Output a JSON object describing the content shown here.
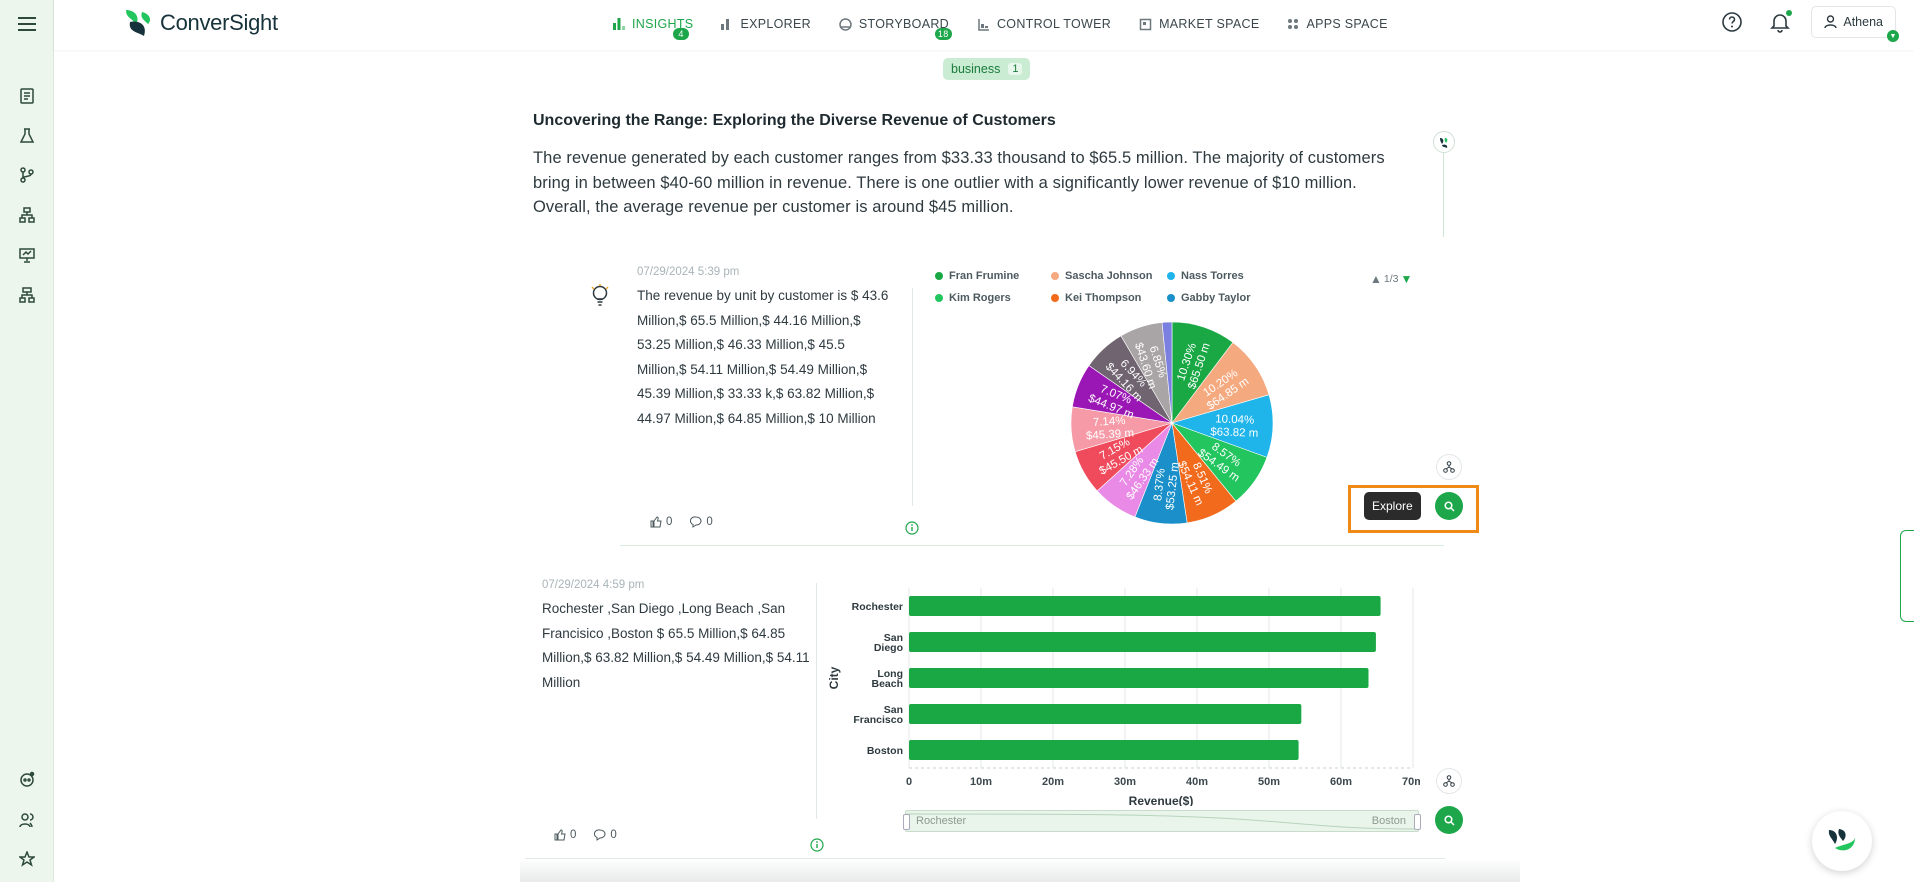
{
  "app": {
    "brand": "ConverSight"
  },
  "nav": [
    {
      "label": "INSIGHTS",
      "badge": "4",
      "active": true
    },
    {
      "label": "EXPLORER",
      "badge": ""
    },
    {
      "label": "STORYBOARD",
      "badge": "18"
    },
    {
      "label": "CONTROL TOWER",
      "badge": ""
    },
    {
      "label": "MARKET SPACE",
      "badge": ""
    },
    {
      "label": "APPS SPACE",
      "badge": ""
    }
  ],
  "user": {
    "name": "Athena"
  },
  "tag": {
    "label": "business",
    "count": "1"
  },
  "insight": {
    "title": "Uncovering the Range: Exploring the Diverse Revenue of Customers",
    "description": "The revenue generated by each customer ranges from $33.33 thousand to $65.5 million. The majority of customers bring in between $40-60 million in revenue. There is one outlier with a significantly lower revenue of $10 million. Overall, the average revenue per customer is around $45 million."
  },
  "card1": {
    "timestamp": "07/29/2024 5:39 pm",
    "statement": "The revenue by unit by customer is $ 43.6 Million,$ 65.5 Million,$ 44.16 Million,$ 53.25 Million,$ 46.33 Million,$ 45.5 Million,$ 54.11 Million,$ 54.49 Million,$ 45.39 Million,$ 33.33 k,$ 63.82 Million,$ 44.97 Million,$ 64.85 Million,$ 10 Million",
    "likes": "0",
    "comments": "0",
    "pager": "1/3",
    "explore_label": "Explore",
    "legend": [
      {
        "name": "Fran Frumine",
        "color": "#1aa845"
      },
      {
        "name": "Sascha Johnson",
        "color": "#f5a97f"
      },
      {
        "name": "Nass Torres",
        "color": "#1fb4ea"
      },
      {
        "name": "Kim Rogers",
        "color": "#22c55e"
      },
      {
        "name": "Kei Thompson",
        "color": "#f26b1d"
      },
      {
        "name": "Gabby Taylor",
        "color": "#1a8fc9"
      }
    ]
  },
  "card2": {
    "timestamp": "07/29/2024 4:59 pm",
    "statement": "Rochester ,San Diego ,Long Beach ,San Francisico ,Boston $ 65.5 Million,$ 64.85 Million,$ 63.82 Million,$ 54.49 Million,$ 54.11 Million",
    "likes": "0",
    "comments": "0",
    "slider_start": "Rochester",
    "slider_end": "Boston"
  },
  "chart_data": [
    {
      "type": "pie",
      "title": "",
      "slices": [
        {
          "pct_label": "10.30%",
          "value_label": "$65.50 m",
          "value": 65.5,
          "color": "#1aa845"
        },
        {
          "pct_label": "10.20%",
          "value_label": "$64.85 m",
          "value": 64.85,
          "color": "#f5a97f"
        },
        {
          "pct_label": "10.04%",
          "value_label": "$63.82 m",
          "value": 63.82,
          "color": "#1fb4ea"
        },
        {
          "pct_label": "8.57%",
          "value_label": "$54.49 m",
          "value": 54.49,
          "color": "#22c55e"
        },
        {
          "pct_label": "8.51%",
          "value_label": "$54.11 m",
          "value": 54.11,
          "color": "#f26b1d"
        },
        {
          "pct_label": "8.37%",
          "value_label": "$53.25 m",
          "value": 53.25,
          "color": "#1a8fc9"
        },
        {
          "pct_label": "7.28%",
          "value_label": "$46.33 m",
          "value": 46.33,
          "color": "#e98ae6"
        },
        {
          "pct_label": "7.15%",
          "value_label": "$45.50 m",
          "value": 45.5,
          "color": "#ef4b5c"
        },
        {
          "pct_label": "7.14%",
          "value_label": "$45.39 m",
          "value": 45.39,
          "color": "#f59aa6"
        },
        {
          "pct_label": "7.07%",
          "value_label": "$44.97 m",
          "value": 44.97,
          "color": "#9b17b5"
        },
        {
          "pct_label": "6.94%",
          "value_label": "$44.16 m",
          "value": 44.16,
          "color": "#6f6470"
        },
        {
          "pct_label": "6.85%",
          "value_label": "$43.60 m",
          "value": 43.6,
          "color": "#a9a4a6"
        },
        {
          "pct_label": "",
          "value_label": "",
          "value": 10,
          "color": "#7b7fe0"
        }
      ]
    },
    {
      "type": "bar",
      "orientation": "horizontal",
      "categories": [
        "Rochester",
        "San Diego",
        "Long Beach",
        "San Francisco",
        "Boston"
      ],
      "values": [
        65.5,
        64.85,
        63.82,
        54.49,
        54.11
      ],
      "xlabel": "Revenue($)",
      "ylabel": "City",
      "xlim": [
        0,
        70
      ],
      "xticks": [
        "0",
        "10m",
        "20m",
        "30m",
        "40m",
        "50m",
        "60m",
        "70m"
      ],
      "color": "#1aa845",
      "grid": true
    }
  ]
}
